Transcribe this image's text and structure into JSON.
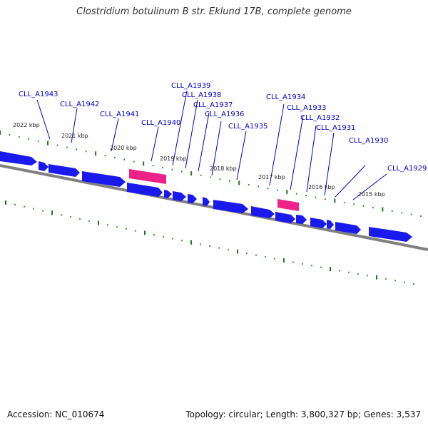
{
  "title": "Clostridium botulinum B str. Eklund 17B, complete genome",
  "footer": {
    "accession": "Accession: NC_010674",
    "summary": "Topology: circular; Length: 3,800,327 bp; Genes: 3,537"
  },
  "colors": {
    "gene": "#1a1aee",
    "gene_highlight": "#ee2288",
    "ticks": "#1a7a1a",
    "backbone": "#808080",
    "label": "#0000cc"
  },
  "kbp_labels": [
    "2022 kbp",
    "2021 kbp",
    "2020 kbp",
    "2019 kbp",
    "2018 kbp",
    "2017 kbp",
    "2016 kbp",
    "2015 kbp"
  ],
  "gene_labels": [
    "CLL_A1943",
    "CLL_A1942",
    "CLL_A1941",
    "CLL_A1940",
    "CLL_A1939",
    "CLL_A1938",
    "CLL_A1937",
    "CLL_A1936",
    "CLL_A1935",
    "CLL_A1934",
    "CLL_A1933",
    "CLL_A1932",
    "CLL_A1931",
    "CLL_A1930",
    "CLL_A1929"
  ]
}
